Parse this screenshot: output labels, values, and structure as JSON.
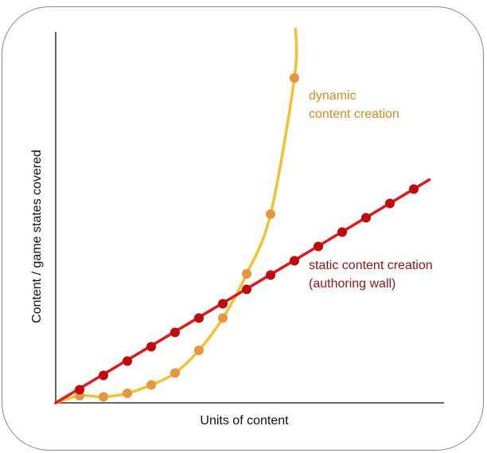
{
  "chart_data": {
    "type": "line",
    "xlabel": "Units of content",
    "ylabel": "Content / game states covered",
    "xlim": [
      0,
      16
    ],
    "ylim": [
      0,
      16
    ],
    "grid": false,
    "axis_ticks": false,
    "series": [
      {
        "key": "static",
        "label_lines": [
          "static content creation",
          "(authoring wall)"
        ],
        "color": "#e8151b",
        "marker_color": "#c10a0a",
        "x": [
          1,
          2,
          3,
          4,
          5,
          6,
          7,
          8,
          9,
          10,
          11,
          12,
          13,
          14,
          15
        ],
        "y": [
          0.55,
          1.15,
          1.75,
          2.35,
          2.95,
          3.55,
          4.15,
          4.75,
          5.35,
          5.95,
          6.55,
          7.15,
          7.75,
          8.35,
          8.95
        ]
      },
      {
        "key": "dynamic",
        "label_lines": [
          "dynamic",
          "content creation"
        ],
        "color": "#f2c232",
        "marker_color": "#e8963e",
        "x": [
          1,
          2,
          3,
          4,
          5,
          6,
          7,
          8,
          9,
          10
        ],
        "y": [
          0.3,
          0.25,
          0.4,
          0.75,
          1.25,
          2.2,
          3.55,
          5.4,
          7.9,
          13.6
        ]
      }
    ]
  }
}
